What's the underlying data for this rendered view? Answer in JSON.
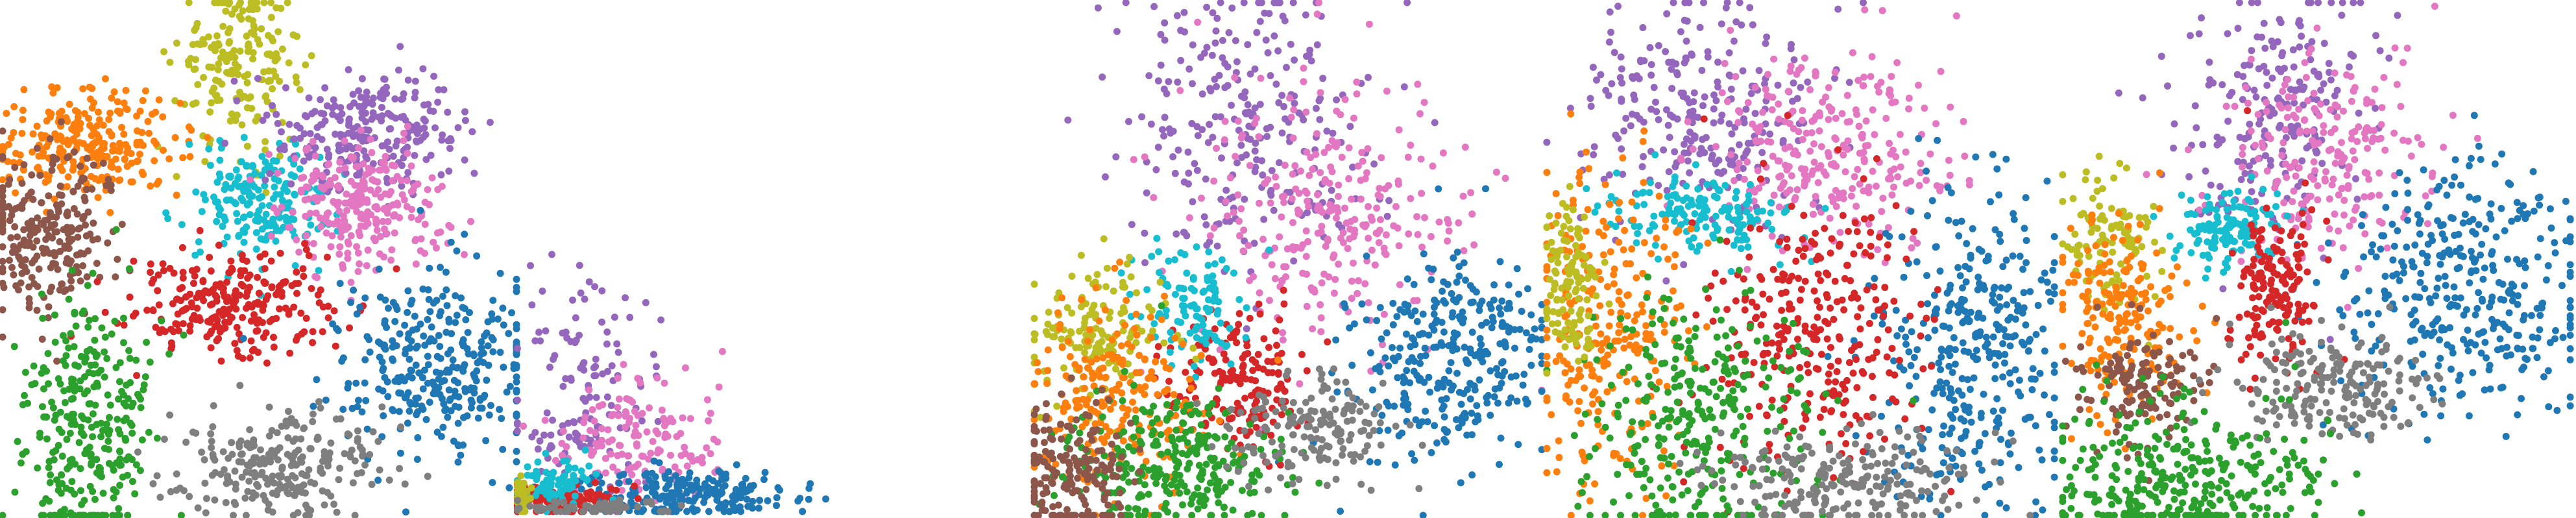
{
  "palette": {
    "c0": "#1f77b4",
    "c1": "#ff7f0e",
    "c2": "#2ca02c",
    "c3": "#d62728",
    "c4": "#9467bd",
    "c5": "#8c564b",
    "c6": "#e377c2",
    "c7": "#7f7f7f",
    "c8": "#bcbd22",
    "c9": "#17becf"
  },
  "chart_data": [
    {
      "type": "scatter",
      "title": "",
      "xlabel": "",
      "ylabel": "",
      "grid": false,
      "legend": "none",
      "axes_visible": false,
      "series": [
        {
          "color_key": "c8",
          "points": 190,
          "cluster": {
            "cx": 0.46,
            "cy": 0.88,
            "sx": 0.06,
            "sy": 0.08
          }
        },
        {
          "color_key": "c1",
          "points": 260,
          "cluster": {
            "cx": 0.17,
            "cy": 0.72,
            "sx": 0.09,
            "sy": 0.05
          }
        },
        {
          "color_key": "c9",
          "points": 200,
          "cluster": {
            "cx": 0.5,
            "cy": 0.61,
            "sx": 0.07,
            "sy": 0.06
          }
        },
        {
          "color_key": "c4",
          "points": 250,
          "cluster": {
            "cx": 0.72,
            "cy": 0.75,
            "sx": 0.09,
            "sy": 0.06
          }
        },
        {
          "color_key": "c6",
          "points": 260,
          "cluster": {
            "cx": 0.7,
            "cy": 0.6,
            "sx": 0.08,
            "sy": 0.06
          }
        },
        {
          "color_key": "c5",
          "points": 240,
          "cluster": {
            "cx": 0.09,
            "cy": 0.56,
            "sx": 0.07,
            "sy": 0.08
          }
        },
        {
          "color_key": "c3",
          "points": 260,
          "cluster": {
            "cx": 0.45,
            "cy": 0.41,
            "sx": 0.1,
            "sy": 0.05
          }
        },
        {
          "color_key": "c0",
          "points": 320,
          "cluster": {
            "cx": 0.84,
            "cy": 0.3,
            "sx": 0.1,
            "sy": 0.09
          }
        },
        {
          "color_key": "c2",
          "points": 300,
          "cluster": {
            "cx": 0.17,
            "cy": 0.17,
            "sx": 0.06,
            "sy": 0.13
          }
        },
        {
          "color_key": "c7",
          "points": 250,
          "cluster": {
            "cx": 0.53,
            "cy": 0.1,
            "sx": 0.1,
            "sy": 0.05
          }
        }
      ]
    },
    {
      "type": "scatter",
      "title": "",
      "xlabel": "",
      "ylabel": "",
      "grid": false,
      "legend": "none",
      "axes_visible": false,
      "series": [
        {
          "color_key": "c4",
          "points": 140,
          "cluster": {
            "cx": 0.22,
            "cy": 0.45,
            "sx": 0.1,
            "sy": 0.22
          }
        },
        {
          "color_key": "c6",
          "points": 160,
          "cluster": {
            "cx": 0.38,
            "cy": 0.28,
            "sx": 0.14,
            "sy": 0.14
          }
        },
        {
          "color_key": "c0",
          "points": 220,
          "cluster": {
            "cx": 0.55,
            "cy": 0.07,
            "sx": 0.18,
            "sy": 0.05
          }
        },
        {
          "color_key": "c3",
          "points": 120,
          "cluster": {
            "cx": 0.12,
            "cy": 0.05,
            "sx": 0.1,
            "sy": 0.03
          }
        },
        {
          "color_key": "c9",
          "points": 80,
          "cluster": {
            "cx": 0.12,
            "cy": 0.12,
            "sx": 0.06,
            "sy": 0.05
          }
        },
        {
          "color_key": "c8",
          "points": 40,
          "cluster": {
            "cx": 0.02,
            "cy": 0.05,
            "sx": 0.015,
            "sy": 0.04
          }
        },
        {
          "color_key": "c7",
          "points": 60,
          "cluster": {
            "cx": 0.25,
            "cy": 0.02,
            "sx": 0.12,
            "sy": 0.015
          }
        }
      ]
    },
    {
      "type": "scatter",
      "title": "",
      "xlabel": "",
      "ylabel": "",
      "grid": false,
      "legend": "none",
      "axes_visible": false,
      "series": [
        {
          "color_key": "c4",
          "points": 260,
          "cluster": {
            "cx": 0.42,
            "cy": 0.76,
            "sx": 0.13,
            "sy": 0.15
          }
        },
        {
          "color_key": "c6",
          "points": 280,
          "cluster": {
            "cx": 0.58,
            "cy": 0.58,
            "sx": 0.13,
            "sy": 0.14
          }
        },
        {
          "color_key": "c0",
          "points": 320,
          "cluster": {
            "cx": 0.82,
            "cy": 0.3,
            "sx": 0.1,
            "sy": 0.1
          }
        },
        {
          "color_key": "c3",
          "points": 180,
          "cluster": {
            "cx": 0.4,
            "cy": 0.27,
            "sx": 0.07,
            "sy": 0.07
          }
        },
        {
          "color_key": "c9",
          "points": 110,
          "cluster": {
            "cx": 0.31,
            "cy": 0.42,
            "sx": 0.05,
            "sy": 0.06
          }
        },
        {
          "color_key": "c8",
          "points": 150,
          "cluster": {
            "cx": 0.12,
            "cy": 0.36,
            "sx": 0.07,
            "sy": 0.07
          }
        },
        {
          "color_key": "c1",
          "points": 220,
          "cluster": {
            "cx": 0.16,
            "cy": 0.22,
            "sx": 0.09,
            "sy": 0.09
          }
        },
        {
          "color_key": "c2",
          "points": 280,
          "cluster": {
            "cx": 0.28,
            "cy": 0.1,
            "sx": 0.11,
            "sy": 0.07
          }
        },
        {
          "color_key": "c5",
          "points": 170,
          "cluster": {
            "cx": 0.07,
            "cy": 0.09,
            "sx": 0.06,
            "sy": 0.07
          }
        },
        {
          "color_key": "c7",
          "points": 160,
          "cluster": {
            "cx": 0.55,
            "cy": 0.17,
            "sx": 0.08,
            "sy": 0.05
          }
        }
      ]
    },
    {
      "type": "scatter",
      "title": "",
      "xlabel": "",
      "ylabel": "",
      "grid": false,
      "legend": "none",
      "axes_visible": false,
      "series": [
        {
          "color_key": "c4",
          "points": 260,
          "cluster": {
            "cx": 0.3,
            "cy": 0.78,
            "sx": 0.11,
            "sy": 0.12
          }
        },
        {
          "color_key": "c6",
          "points": 280,
          "cluster": {
            "cx": 0.55,
            "cy": 0.72,
            "sx": 0.12,
            "sy": 0.09
          }
        },
        {
          "color_key": "c9",
          "points": 150,
          "cluster": {
            "cx": 0.3,
            "cy": 0.59,
            "sx": 0.09,
            "sy": 0.04
          }
        },
        {
          "color_key": "c0",
          "points": 360,
          "cluster": {
            "cx": 0.84,
            "cy": 0.33,
            "sx": 0.09,
            "sy": 0.16
          }
        },
        {
          "color_key": "c3",
          "points": 300,
          "cluster": {
            "cx": 0.52,
            "cy": 0.35,
            "sx": 0.1,
            "sy": 0.14
          }
        },
        {
          "color_key": "c1",
          "points": 260,
          "cluster": {
            "cx": 0.12,
            "cy": 0.37,
            "sx": 0.08,
            "sy": 0.16
          }
        },
        {
          "color_key": "c2",
          "points": 320,
          "cluster": {
            "cx": 0.3,
            "cy": 0.19,
            "sx": 0.12,
            "sy": 0.12
          }
        },
        {
          "color_key": "c7",
          "points": 220,
          "cluster": {
            "cx": 0.58,
            "cy": 0.07,
            "sx": 0.13,
            "sy": 0.05
          }
        },
        {
          "color_key": "c8",
          "points": 120,
          "cluster": {
            "cx": 0.05,
            "cy": 0.44,
            "sx": 0.03,
            "sy": 0.09
          }
        }
      ]
    },
    {
      "type": "scatter",
      "title": "",
      "xlabel": "",
      "ylabel": "",
      "grid": false,
      "legend": "none",
      "axes_visible": false,
      "series": [
        {
          "color_key": "c4",
          "points": 220,
          "cluster": {
            "cx": 0.42,
            "cy": 0.78,
            "sx": 0.09,
            "sy": 0.13
          }
        },
        {
          "color_key": "c6",
          "points": 220,
          "cluster": {
            "cx": 0.52,
            "cy": 0.7,
            "sx": 0.1,
            "sy": 0.1
          }
        },
        {
          "color_key": "c9",
          "points": 130,
          "cluster": {
            "cx": 0.33,
            "cy": 0.56,
            "sx": 0.05,
            "sy": 0.04
          }
        },
        {
          "color_key": "c0",
          "points": 360,
          "cluster": {
            "cx": 0.78,
            "cy": 0.44,
            "sx": 0.13,
            "sy": 0.12
          }
        },
        {
          "color_key": "c3",
          "points": 160,
          "cluster": {
            "cx": 0.42,
            "cy": 0.43,
            "sx": 0.04,
            "sy": 0.08
          }
        },
        {
          "color_key": "c8",
          "points": 110,
          "cluster": {
            "cx": 0.1,
            "cy": 0.53,
            "sx": 0.05,
            "sy": 0.06
          }
        },
        {
          "color_key": "c1",
          "points": 200,
          "cluster": {
            "cx": 0.12,
            "cy": 0.4,
            "sx": 0.06,
            "sy": 0.09
          }
        },
        {
          "color_key": "c5",
          "points": 140,
          "cluster": {
            "cx": 0.16,
            "cy": 0.25,
            "sx": 0.06,
            "sy": 0.06
          }
        },
        {
          "color_key": "c7",
          "points": 200,
          "cluster": {
            "cx": 0.53,
            "cy": 0.25,
            "sx": 0.09,
            "sy": 0.05
          }
        },
        {
          "color_key": "c2",
          "points": 330,
          "cluster": {
            "cx": 0.25,
            "cy": 0.08,
            "sx": 0.13,
            "sy": 0.08
          }
        }
      ]
    }
  ]
}
